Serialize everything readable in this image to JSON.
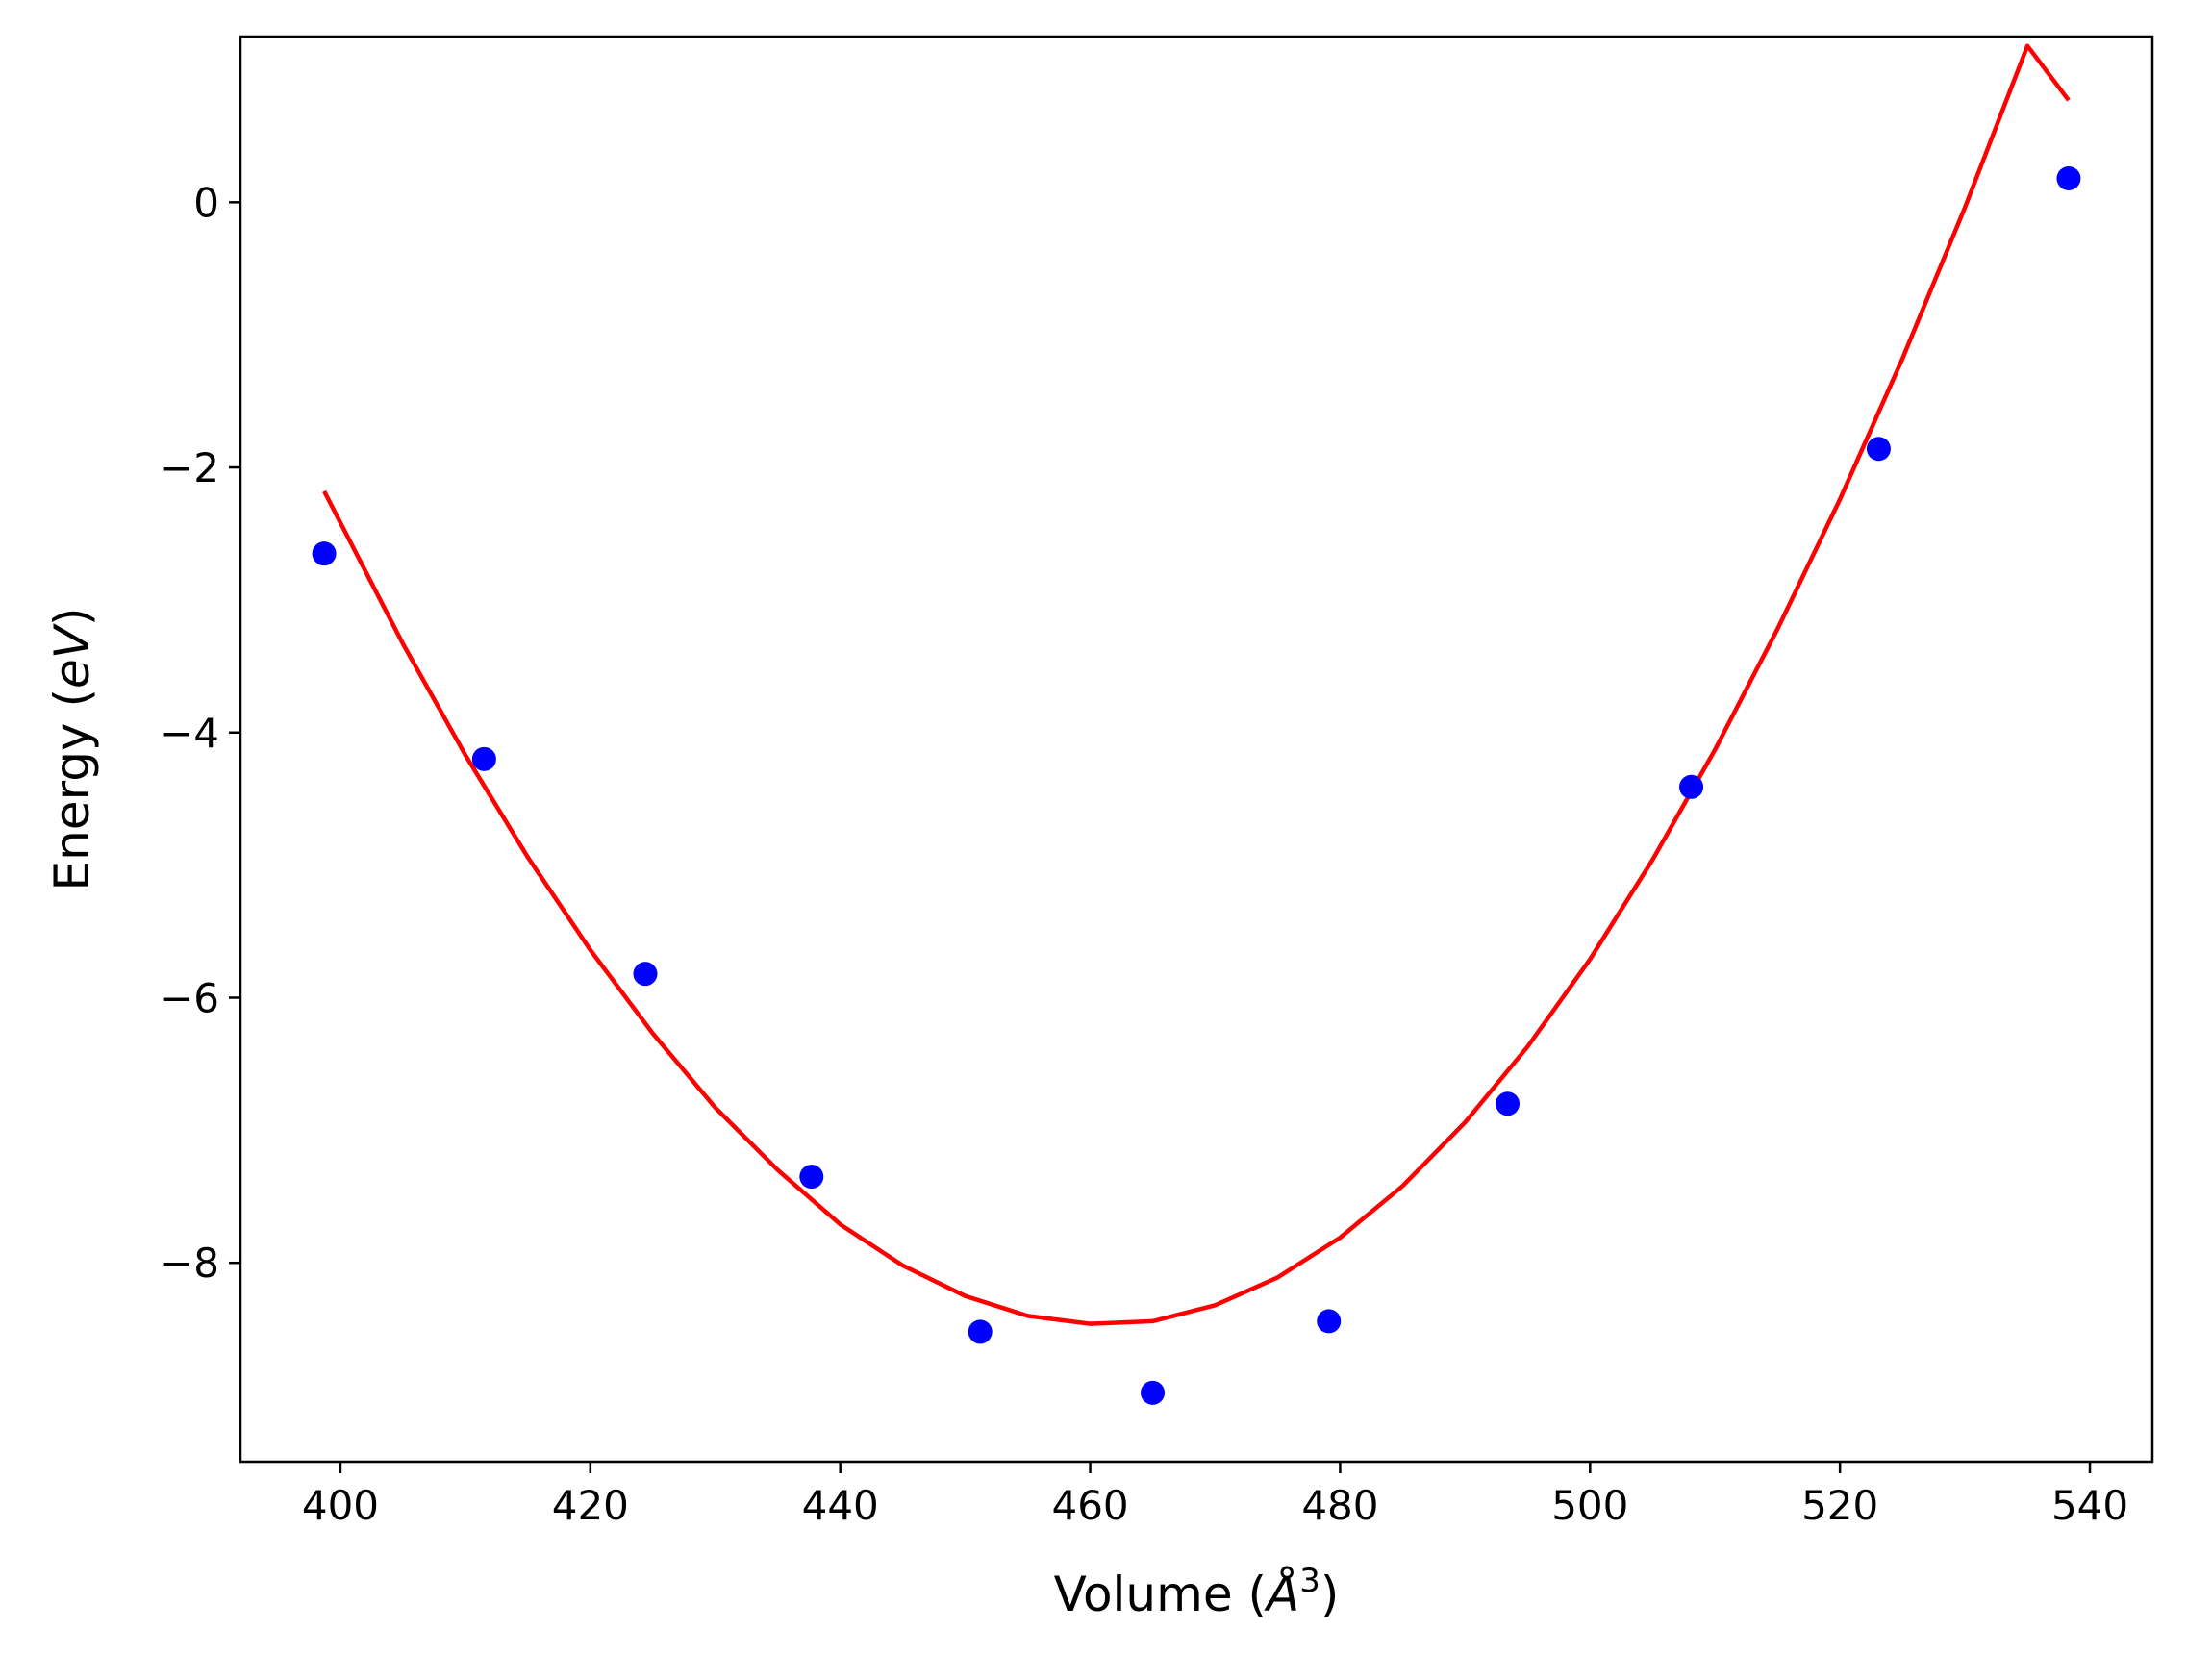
{
  "chart_data": {
    "type": "scatter",
    "xlabel": "Volume (Å³)",
    "xlabel_parts": {
      "prefix": "Volume (",
      "symbol": "Å",
      "power": "3",
      "suffix": ")"
    },
    "ylabel": "Energy (eV)",
    "ylabel_parts": {
      "prefix": "Energy (",
      "symbol": "eV",
      "suffix": ")"
    },
    "xlim": [
      392,
      545
    ],
    "ylim": [
      -9.5,
      1.25
    ],
    "x_ticks": [
      400,
      420,
      440,
      460,
      480,
      500,
      520,
      540
    ],
    "x_tick_labels": [
      "400",
      "420",
      "440",
      "460",
      "480",
      "500",
      "520",
      "540"
    ],
    "y_ticks": [
      0,
      -2,
      -4,
      -6,
      -8
    ],
    "y_tick_labels": [
      "0",
      "−2",
      "−4",
      "−6",
      "−8"
    ],
    "grid": false,
    "points": {
      "color": "#0000ff",
      "x": [
        398.7,
        411.5,
        424.4,
        437.7,
        451.2,
        465.0,
        479.1,
        493.4,
        508.1,
        523.1,
        538.3
      ],
      "y": [
        -2.65,
        -4.2,
        -5.82,
        -7.35,
        -8.52,
        -8.98,
        -8.44,
        -6.8,
        -4.41,
        -1.86,
        0.18
      ]
    },
    "fit_curve": {
      "color": "#ff0000",
      "x": [
        398.7,
        405,
        410,
        415,
        420,
        425,
        430,
        435,
        440,
        445,
        450,
        455,
        460,
        465,
        470,
        475,
        480,
        485,
        490,
        495,
        500,
        505,
        510,
        515,
        520,
        525,
        530,
        535,
        538.3
      ],
      "y": [
        -2.18,
        -3.33,
        -4.17,
        -4.94,
        -5.64,
        -6.27,
        -6.83,
        -7.3,
        -7.71,
        -8.02,
        -8.25,
        -8.4,
        -8.46,
        -8.44,
        -8.32,
        -8.11,
        -7.81,
        -7.42,
        -6.94,
        -6.37,
        -5.71,
        -4.96,
        -4.13,
        -3.22,
        -2.24,
        -1.18,
        -0.04,
        1.18,
        0.77
      ]
    }
  }
}
